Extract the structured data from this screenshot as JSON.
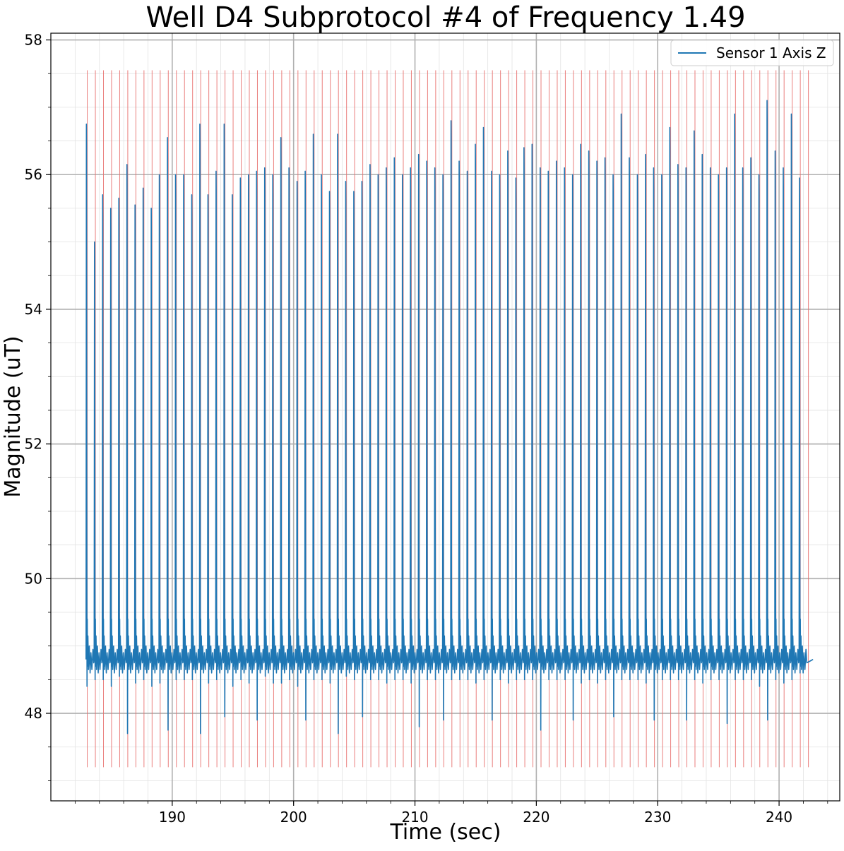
{
  "chart_data": {
    "type": "line",
    "title": "Well D4 Subprotocol #4 of Frequency 1.49",
    "xlabel": "Time (sec)",
    "ylabel": "Magnitude (uT)",
    "xlim": [
      180,
      245
    ],
    "ylim": [
      46.7,
      58.1
    ],
    "x_ticks": [
      190,
      200,
      210,
      220,
      230,
      240
    ],
    "x_tick_labels": [
      "190",
      "200",
      "210",
      "220",
      "230",
      "240"
    ],
    "x_minor_step": 2,
    "y_ticks": [
      48,
      50,
      52,
      54,
      56,
      58
    ],
    "y_tick_labels": [
      "48",
      "50",
      "52",
      "54",
      "56",
      "58"
    ],
    "y_minor_step": 0.5,
    "grid": true,
    "legend": {
      "position": "top-right",
      "entries": [
        "Sensor 1 Axis Z"
      ]
    },
    "series": [
      {
        "name": "Sensor 1 Axis Z",
        "color": "#1f77b4",
        "t_start": 182.9,
        "t_end": 242.8,
        "n_beats": 89,
        "beat_period": 0.6676,
        "baseline": 48.8,
        "beat_peaks": [
          56.75,
          55.0,
          55.7,
          55.5,
          55.65,
          56.15,
          55.55,
          55.8,
          55.5,
          56.0,
          56.55,
          56.0,
          56.0,
          55.7,
          56.75,
          55.7,
          56.05,
          56.75,
          55.7,
          55.95,
          56.0,
          56.05,
          56.1,
          56.0,
          56.55,
          56.1,
          55.9,
          56.05,
          56.6,
          56.0,
          55.75,
          56.6,
          55.9,
          55.75,
          55.9,
          56.15,
          56.0,
          56.1,
          56.25,
          56.0,
          56.1,
          56.3,
          56.2,
          56.1,
          56.0,
          56.8,
          56.2,
          56.05,
          56.45,
          56.7,
          56.05,
          56.0,
          56.35,
          55.95,
          56.4,
          56.45,
          56.1,
          56.05,
          56.2,
          56.1,
          56.0,
          56.45,
          56.35,
          56.2,
          56.25,
          56.0,
          56.9,
          56.25,
          56.0,
          56.3,
          56.1,
          56.0,
          56.7,
          56.15,
          56.1,
          56.65,
          56.3,
          56.1,
          56.0,
          56.1,
          56.9,
          56.1,
          56.25,
          56.0,
          57.1,
          56.35,
          56.1,
          56.9,
          55.95
        ],
        "beat_troughs": [
          48.4,
          48.5,
          48.5,
          48.4,
          48.55,
          47.7,
          48.45,
          48.5,
          48.4,
          48.45,
          47.75,
          48.5,
          48.5,
          48.5,
          47.7,
          48.45,
          48.5,
          47.95,
          48.4,
          48.5,
          48.45,
          47.9,
          48.55,
          48.45,
          48.45,
          48.5,
          48.4,
          47.9,
          48.5,
          48.5,
          48.45,
          47.7,
          48.55,
          48.5,
          47.95,
          48.5,
          48.5,
          48.45,
          48.5,
          48.5,
          48.45,
          47.8,
          48.5,
          48.5,
          47.9,
          48.5,
          48.5,
          48.5,
          48.45,
          48.5,
          47.9,
          48.5,
          48.45,
          48.5,
          48.5,
          48.5,
          47.75,
          48.5,
          48.5,
          48.5,
          47.9,
          48.45,
          48.5,
          48.45,
          48.5,
          47.95,
          48.5,
          48.5,
          48.5,
          48.45,
          47.9,
          48.5,
          48.5,
          48.5,
          47.9,
          48.5,
          48.45,
          48.5,
          48.5,
          47.85,
          48.5,
          48.5,
          48.5,
          48.4,
          47.9,
          48.5,
          48.45,
          48.5,
          48.6
        ]
      }
    ],
    "markers": {
      "color": "#e8716f",
      "y_from": 47.2,
      "y_to": 57.55,
      "x_start": 183.0,
      "x_step": 0.6676,
      "count": 90
    }
  }
}
